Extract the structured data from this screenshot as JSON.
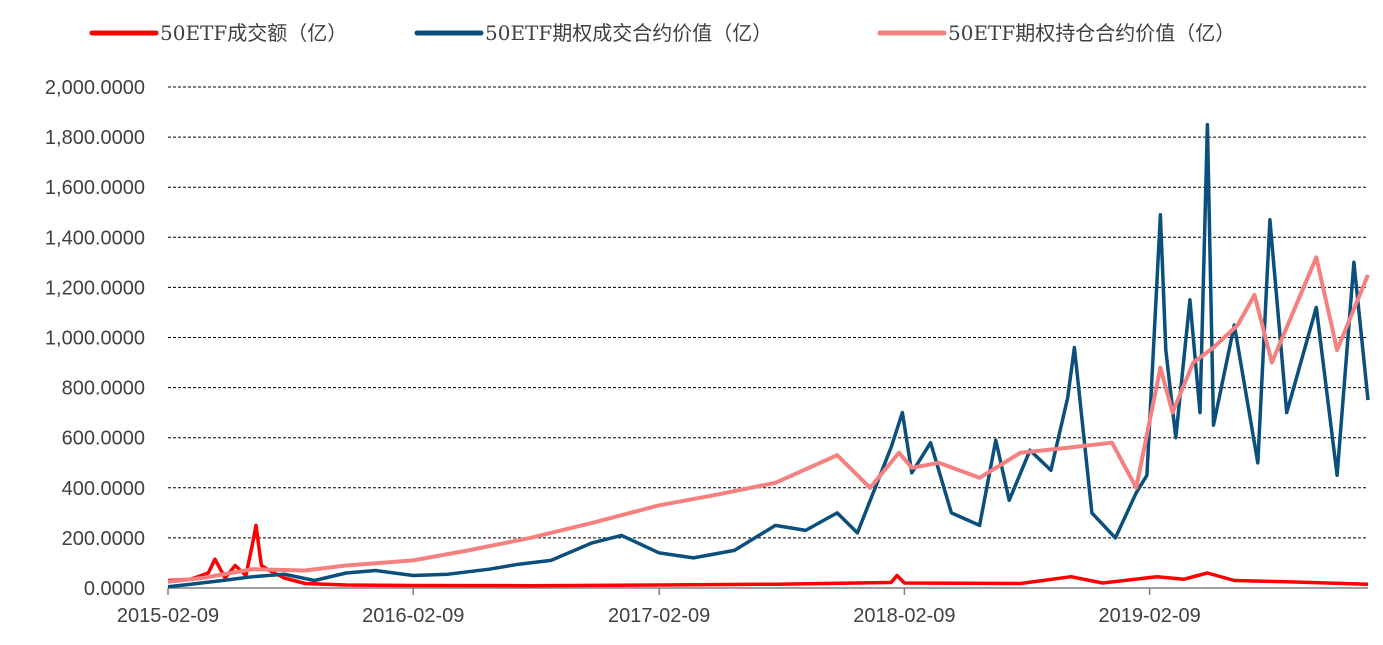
{
  "chart_data": {
    "type": "line",
    "title": "",
    "xlabel": "",
    "ylabel": "",
    "ylim": [
      0,
      2000
    ],
    "xlim": [
      "2015-02-09",
      "2019-12-31"
    ],
    "grid": "horizontal dashed",
    "legend_position": "top",
    "y_ticks": [
      "0.0000",
      "200.0000",
      "400.0000",
      "600.0000",
      "800.0000",
      "1,000.0000",
      "1,200.0000",
      "1,400.0000",
      "1,600.0000",
      "1,800.0000",
      "2,000.0000"
    ],
    "x_ticks": [
      "2015-02-09",
      "2016-02-09",
      "2017-02-09",
      "2018-02-09",
      "2019-02-09"
    ],
    "series": [
      {
        "name": "50ETF成交额（亿）",
        "color": "#ff0000",
        "points": [
          [
            "2015-02-09",
            30
          ],
          [
            "2015-03-15",
            35
          ],
          [
            "2015-04-10",
            60
          ],
          [
            "2015-04-20",
            115
          ],
          [
            "2015-05-05",
            40
          ],
          [
            "2015-05-20",
            90
          ],
          [
            "2015-06-05",
            50
          ],
          [
            "2015-06-15",
            180
          ],
          [
            "2015-06-20",
            250
          ],
          [
            "2015-06-28",
            90
          ],
          [
            "2015-07-10",
            70
          ],
          [
            "2015-08-01",
            40
          ],
          [
            "2015-09-01",
            18
          ],
          [
            "2015-11-01",
            12
          ],
          [
            "2016-02-09",
            10
          ],
          [
            "2016-08-01",
            9
          ],
          [
            "2017-02-09",
            12
          ],
          [
            "2017-08-01",
            15
          ],
          [
            "2018-01-20",
            22
          ],
          [
            "2018-01-29",
            50
          ],
          [
            "2018-02-09",
            20
          ],
          [
            "2018-08-01",
            18
          ],
          [
            "2018-10-15",
            45
          ],
          [
            "2018-12-01",
            20
          ],
          [
            "2019-02-20",
            45
          ],
          [
            "2019-04-01",
            35
          ],
          [
            "2019-05-06",
            60
          ],
          [
            "2019-06-15",
            30
          ],
          [
            "2019-09-01",
            25
          ],
          [
            "2019-12-31",
            15
          ]
        ]
      },
      {
        "name": "50ETF期权成交合约价值（亿）",
        "color": "#0b4f7c",
        "points": [
          [
            "2015-02-09",
            5
          ],
          [
            "2015-03-15",
            15
          ],
          [
            "2015-05-01",
            30
          ],
          [
            "2015-06-15",
            45
          ],
          [
            "2015-08-01",
            55
          ],
          [
            "2015-09-15",
            30
          ],
          [
            "2015-11-01",
            60
          ],
          [
            "2015-12-15",
            70
          ],
          [
            "2016-02-09",
            50
          ],
          [
            "2016-04-01",
            55
          ],
          [
            "2016-06-01",
            75
          ],
          [
            "2016-07-15",
            95
          ],
          [
            "2016-09-01",
            110
          ],
          [
            "2016-11-01",
            180
          ],
          [
            "2016-12-15",
            210
          ],
          [
            "2017-02-09",
            140
          ],
          [
            "2017-04-01",
            120
          ],
          [
            "2017-06-01",
            150
          ],
          [
            "2017-08-01",
            250
          ],
          [
            "2017-09-15",
            230
          ],
          [
            "2017-11-01",
            300
          ],
          [
            "2017-12-01",
            220
          ],
          [
            "2018-01-20",
            560
          ],
          [
            "2018-02-06",
            700
          ],
          [
            "2018-02-20",
            460
          ],
          [
            "2018-03-20",
            580
          ],
          [
            "2018-04-20",
            300
          ],
          [
            "2018-06-01",
            250
          ],
          [
            "2018-06-25",
            590
          ],
          [
            "2018-07-15",
            350
          ],
          [
            "2018-08-15",
            550
          ],
          [
            "2018-09-15",
            470
          ],
          [
            "2018-10-10",
            760
          ],
          [
            "2018-10-20",
            960
          ],
          [
            "2018-11-15",
            300
          ],
          [
            "2018-12-20",
            200
          ],
          [
            "2019-01-20",
            380
          ],
          [
            "2019-02-05",
            450
          ],
          [
            "2019-02-25",
            1490
          ],
          [
            "2019-03-05",
            950
          ],
          [
            "2019-03-20",
            600
          ],
          [
            "2019-04-10",
            1150
          ],
          [
            "2019-04-25",
            700
          ],
          [
            "2019-05-06",
            1850
          ],
          [
            "2019-05-15",
            650
          ],
          [
            "2019-06-15",
            1050
          ],
          [
            "2019-07-20",
            500
          ],
          [
            "2019-08-07",
            1470
          ],
          [
            "2019-09-01",
            700
          ],
          [
            "2019-10-15",
            1120
          ],
          [
            "2019-11-15",
            450
          ],
          [
            "2019-12-10",
            1300
          ],
          [
            "2019-12-31",
            750
          ]
        ]
      },
      {
        "name": "50ETF期权持仓合约价值（亿）",
        "color": "#f48080",
        "points": [
          [
            "2015-02-09",
            25
          ],
          [
            "2015-04-01",
            40
          ],
          [
            "2015-06-15",
            75
          ],
          [
            "2015-09-01",
            70
          ],
          [
            "2015-11-01",
            90
          ],
          [
            "2016-02-09",
            110
          ],
          [
            "2016-05-01",
            150
          ],
          [
            "2016-08-01",
            200
          ],
          [
            "2016-11-01",
            260
          ],
          [
            "2017-02-09",
            330
          ],
          [
            "2017-05-01",
            370
          ],
          [
            "2017-08-01",
            420
          ],
          [
            "2017-11-01",
            530
          ],
          [
            "2017-12-20",
            400
          ],
          [
            "2018-02-01",
            540
          ],
          [
            "2018-02-20",
            480
          ],
          [
            "2018-04-01",
            500
          ],
          [
            "2018-06-01",
            440
          ],
          [
            "2018-08-01",
            540
          ],
          [
            "2018-10-10",
            560
          ],
          [
            "2018-12-15",
            580
          ],
          [
            "2019-01-20",
            400
          ],
          [
            "2019-02-25",
            880
          ],
          [
            "2019-03-15",
            700
          ],
          [
            "2019-04-15",
            900
          ],
          [
            "2019-05-15",
            960
          ],
          [
            "2019-06-20",
            1050
          ],
          [
            "2019-07-15",
            1170
          ],
          [
            "2019-08-10",
            900
          ],
          [
            "2019-10-15",
            1320
          ],
          [
            "2019-11-15",
            950
          ],
          [
            "2019-12-31",
            1250
          ]
        ]
      }
    ]
  }
}
